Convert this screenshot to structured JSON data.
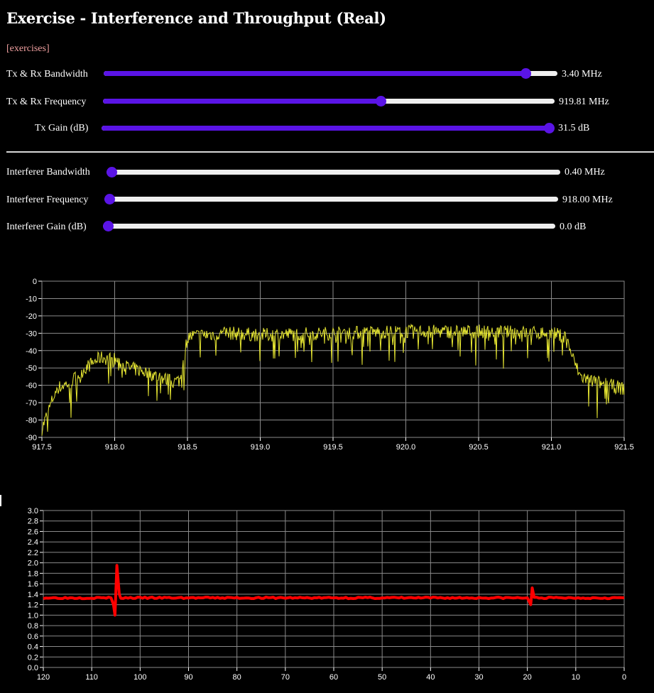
{
  "page": {
    "title": "Exercise - Interference and Throughput (Real)",
    "link_label": "[exercises]"
  },
  "colors": {
    "slider_accent": "#5a14e6",
    "spectrum_line": "#e6e632",
    "throughput_line": "#ff0000",
    "grid": "#8a8a8a"
  },
  "sliders": {
    "tx_bandwidth": {
      "label": "Tx & Rx Bandwidth",
      "value_text": "3.40 MHz",
      "fraction": 0.93
    },
    "tx_frequency": {
      "label": "Tx & Rx Frequency",
      "value_text": "919.81 MHz",
      "fraction": 0.615
    },
    "tx_gain": {
      "label": "Tx Gain (dB)",
      "value_text": "31.5 dB",
      "fraction": 1.0
    },
    "int_bandwidth": {
      "label": "Interferer Bandwidth",
      "value_text": "0.40 MHz",
      "fraction": 0.0
    },
    "int_frequency": {
      "label": "Interferer Frequency",
      "value_text": "918.00 MHz",
      "fraction": 0.0
    },
    "int_gain": {
      "label": "Interferer Gain (dB)",
      "value_text": "0.0 dB",
      "fraction": 0.0
    }
  },
  "chart_data": [
    {
      "type": "line",
      "name": "spectrum",
      "title": "",
      "xlabel": "",
      "ylabel": "",
      "xlim": [
        917.5,
        921.5
      ],
      "ylim": [
        -90,
        0
      ],
      "x_ticks": [
        "917.5",
        "918.0",
        "918.5",
        "919.0",
        "919.5",
        "920.0",
        "920.5",
        "921.0",
        "921.5"
      ],
      "y_ticks": [
        "0",
        "-10",
        "-20",
        "-30",
        "-40",
        "-50",
        "-60",
        "-70",
        "-80",
        "-90"
      ],
      "grid": true,
      "series": [
        {
          "name": "power",
          "x": [
            917.5,
            917.6,
            917.7,
            917.8,
            917.9,
            918.0,
            918.05,
            918.1,
            918.2,
            918.3,
            918.4,
            918.45,
            918.5,
            918.6,
            918.8,
            919.0,
            919.5,
            920.0,
            920.5,
            921.0,
            921.1,
            921.15,
            921.2,
            921.3,
            921.4,
            921.5
          ],
          "values": [
            -85,
            -62,
            -58,
            -50,
            -44,
            -45,
            -48,
            -50,
            -52,
            -55,
            -58,
            -57,
            -32,
            -31,
            -30,
            -31,
            -30,
            -29,
            -29,
            -30,
            -32,
            -45,
            -55,
            -58,
            -60,
            -62
          ]
        }
      ]
    },
    {
      "type": "line",
      "name": "throughput",
      "title": "",
      "xlabel": "",
      "ylabel": "",
      "xlim": [
        120,
        0
      ],
      "ylim": [
        0.0,
        3.0
      ],
      "x_ticks": [
        "120",
        "110",
        "100",
        "90",
        "80",
        "70",
        "60",
        "50",
        "40",
        "30",
        "20",
        "10",
        "0"
      ],
      "y_ticks": [
        "3.0",
        "2.8",
        "2.6",
        "2.4",
        "2.2",
        "2.0",
        "1.8",
        "1.6",
        "1.4",
        "1.2",
        "1.0",
        "0.8",
        "0.6",
        "0.4",
        "0.2",
        "0.0"
      ],
      "grid": true,
      "series": [
        {
          "name": "throughput",
          "x": [
            120,
            110,
            106,
            105.5,
            105.2,
            104.8,
            104.3,
            104,
            100,
            90,
            80,
            70,
            60,
            50,
            41,
            40,
            30,
            20,
            19.3,
            19,
            18.6,
            10,
            0
          ],
          "values": [
            1.33,
            1.33,
            1.33,
            1.2,
            1.0,
            1.95,
            1.4,
            1.33,
            1.33,
            1.33,
            1.33,
            1.33,
            1.33,
            1.33,
            1.33,
            1.33,
            1.33,
            1.33,
            1.2,
            1.52,
            1.33,
            1.33,
            1.33
          ]
        }
      ]
    }
  ]
}
